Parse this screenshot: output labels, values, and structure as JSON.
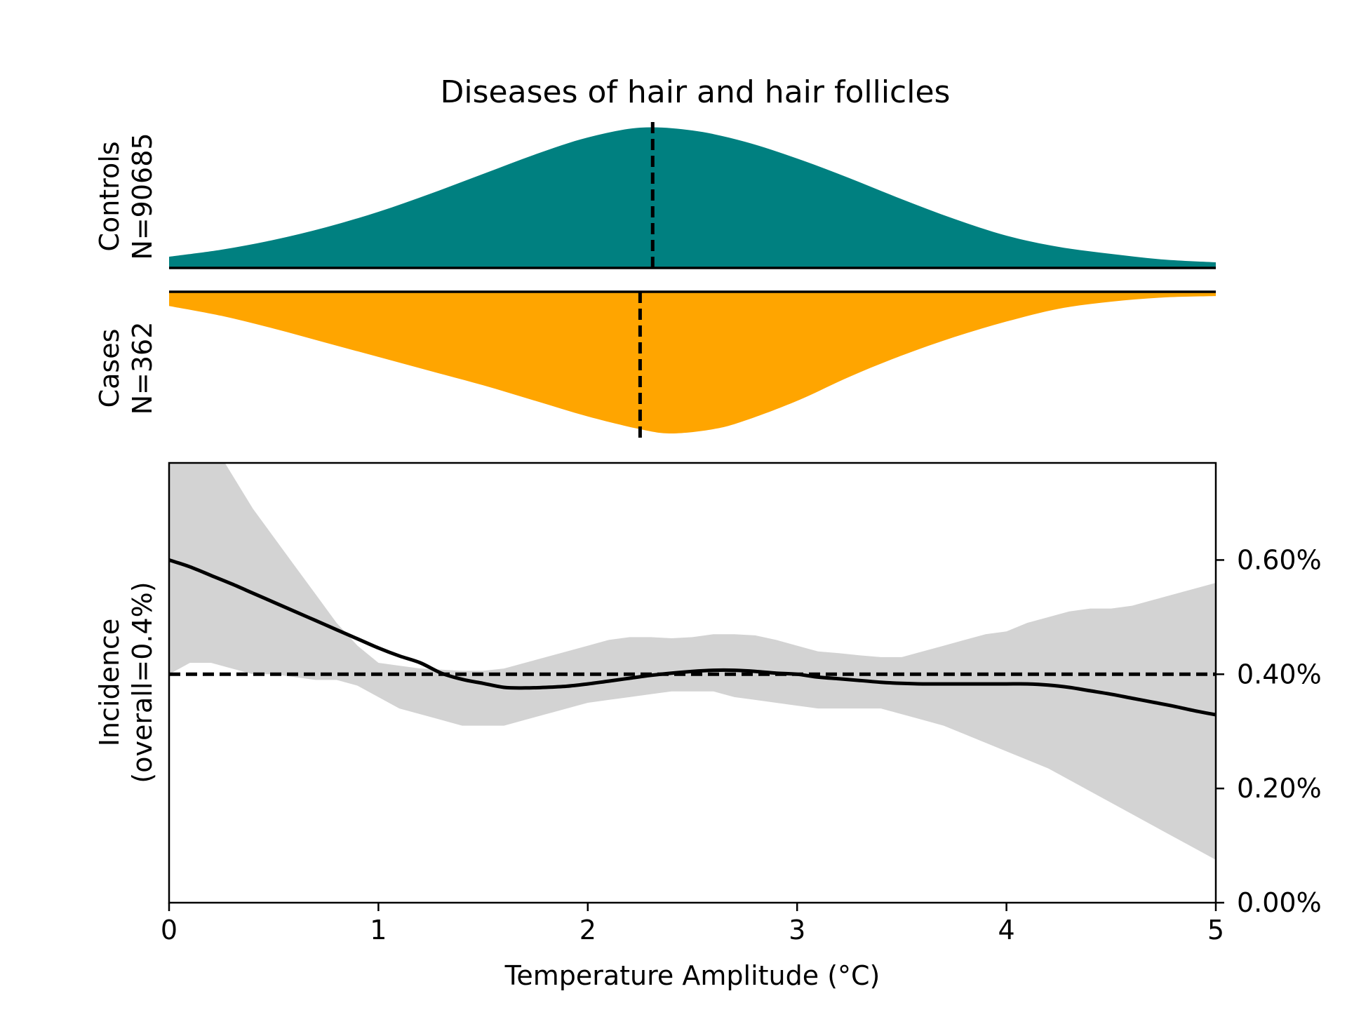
{
  "chart_data": {
    "type": "area",
    "title": "Diseases of hair and hair follicles",
    "xlabel": "Temperature Amplitude (°C)",
    "xlim": [
      0,
      5
    ],
    "x_ticks": [
      "0",
      "1",
      "2",
      "3",
      "4",
      "5"
    ],
    "distributions": {
      "controls": {
        "label": "Controls",
        "n_label": "N=90685",
        "color": "#008080",
        "median": 2.31,
        "x": [
          0,
          0.25,
          0.5,
          0.75,
          1.0,
          1.25,
          1.5,
          1.75,
          2.0,
          2.25,
          2.5,
          2.75,
          3.0,
          3.25,
          3.5,
          3.75,
          4.0,
          4.25,
          4.5,
          4.75,
          5.0
        ],
        "density": [
          0.08,
          0.13,
          0.2,
          0.29,
          0.4,
          0.53,
          0.67,
          0.81,
          0.93,
          1.0,
          0.98,
          0.9,
          0.78,
          0.64,
          0.49,
          0.35,
          0.23,
          0.15,
          0.1,
          0.06,
          0.04
        ]
      },
      "cases": {
        "label": "Cases",
        "n_label": "N=362",
        "color": "#FFA500",
        "median": 2.25,
        "x": [
          0,
          0.25,
          0.5,
          0.75,
          1.0,
          1.25,
          1.5,
          1.75,
          2.0,
          2.25,
          2.4,
          2.6,
          2.75,
          3.0,
          3.25,
          3.5,
          3.75,
          4.0,
          4.25,
          4.5,
          4.75,
          5.0
        ],
        "density": [
          0.1,
          0.17,
          0.26,
          0.36,
          0.46,
          0.56,
          0.66,
          0.77,
          0.88,
          0.97,
          1.0,
          0.97,
          0.91,
          0.77,
          0.6,
          0.45,
          0.32,
          0.21,
          0.12,
          0.07,
          0.04,
          0.03
        ]
      }
    },
    "incidence": {
      "ylabel_line1": "Incidence",
      "ylabel_line2": "(overall=0.4%)",
      "ylim": [
        0,
        0.0077
      ],
      "y_ticks": [
        {
          "value": 0.0,
          "label": "0.00%"
        },
        {
          "value": 0.002,
          "label": "0.20%"
        },
        {
          "value": 0.004,
          "label": "0.40%"
        },
        {
          "value": 0.006,
          "label": "0.60%"
        }
      ],
      "overall": 0.004,
      "x": [
        0,
        0.1,
        0.2,
        0.3,
        0.4,
        0.5,
        0.6,
        0.7,
        0.8,
        0.9,
        1.0,
        1.1,
        1.2,
        1.3,
        1.4,
        1.5,
        1.6,
        1.7,
        1.8,
        1.9,
        2.0,
        2.1,
        2.2,
        2.3,
        2.4,
        2.5,
        2.6,
        2.7,
        2.8,
        2.9,
        3.0,
        3.1,
        3.2,
        3.3,
        3.4,
        3.5,
        3.6,
        3.7,
        3.8,
        3.9,
        4.0,
        4.1,
        4.2,
        4.3,
        4.4,
        4.5,
        4.6,
        4.7,
        4.8,
        4.9,
        5.0
      ],
      "estimate": [
        0.006,
        0.00588,
        0.00573,
        0.00558,
        0.00542,
        0.00526,
        0.0051,
        0.00494,
        0.00478,
        0.00462,
        0.00446,
        0.00432,
        0.0042,
        0.00402,
        0.00391,
        0.00384,
        0.00377,
        0.00376,
        0.00377,
        0.00379,
        0.00383,
        0.00388,
        0.00393,
        0.00398,
        0.00402,
        0.00405,
        0.00407,
        0.00407,
        0.00405,
        0.00402,
        0.004,
        0.00395,
        0.00392,
        0.00389,
        0.00386,
        0.00384,
        0.00383,
        0.00383,
        0.00383,
        0.00383,
        0.00383,
        0.00383,
        0.00381,
        0.00377,
        0.00371,
        0.00365,
        0.00358,
        0.00351,
        0.00344,
        0.00336,
        0.00329
      ],
      "ci_lower": [
        0.004,
        0.0042,
        0.0042,
        0.0041,
        0.004,
        0.004,
        0.00395,
        0.0039,
        0.0039,
        0.0038,
        0.0036,
        0.0034,
        0.0033,
        0.0032,
        0.0031,
        0.0031,
        0.0031,
        0.0032,
        0.0033,
        0.0034,
        0.0035,
        0.00355,
        0.0036,
        0.00365,
        0.0037,
        0.0037,
        0.0037,
        0.0036,
        0.00355,
        0.0035,
        0.00345,
        0.0034,
        0.0034,
        0.0034,
        0.0034,
        0.0033,
        0.0032,
        0.0031,
        0.00295,
        0.0028,
        0.00265,
        0.0025,
        0.00235,
        0.00215,
        0.00195,
        0.00175,
        0.00155,
        0.00135,
        0.00115,
        0.00095,
        0.00075
      ],
      "ci_upper": [
        0.0095,
        0.0088,
        0.0081,
        0.0075,
        0.0069,
        0.0064,
        0.0059,
        0.0054,
        0.0049,
        0.0045,
        0.0042,
        0.00415,
        0.0041,
        0.00408,
        0.00406,
        0.00406,
        0.0041,
        0.0042,
        0.0043,
        0.0044,
        0.0045,
        0.0046,
        0.00465,
        0.00465,
        0.00463,
        0.00465,
        0.0047,
        0.0047,
        0.00468,
        0.0046,
        0.0045,
        0.0044,
        0.00437,
        0.00433,
        0.0043,
        0.0043,
        0.0044,
        0.0045,
        0.0046,
        0.0047,
        0.00475,
        0.0049,
        0.005,
        0.0051,
        0.00515,
        0.00515,
        0.0052,
        0.0053,
        0.0054,
        0.0055,
        0.0056
      ],
      "band_color": "#d3d3d3"
    }
  }
}
